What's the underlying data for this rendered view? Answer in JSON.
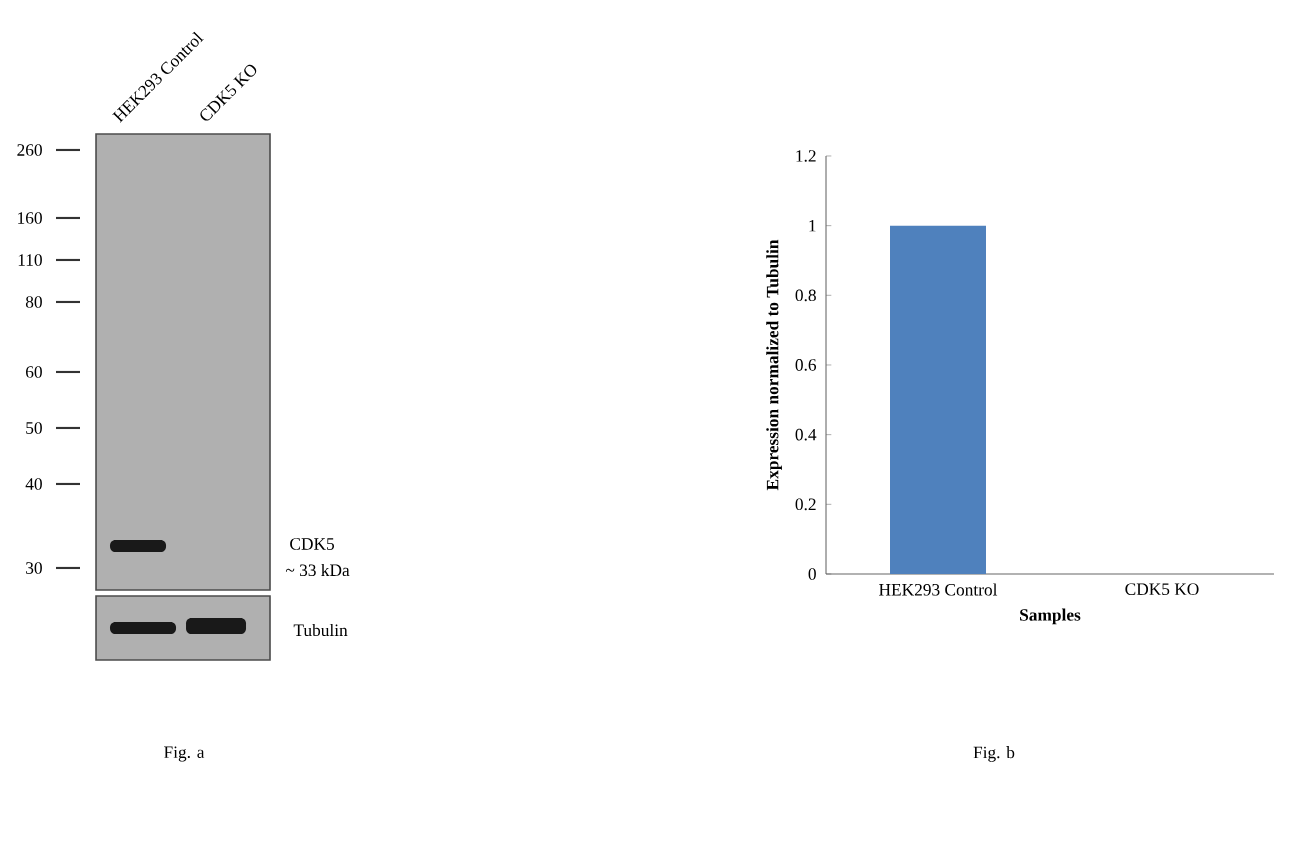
{
  "chart_data": [
    {
      "type": "other",
      "categories": [
        "HEK293 Control",
        "CDK5 KO"
      ],
      "annotations": [
        "260",
        "160",
        "110",
        "80",
        "60",
        "50",
        "40",
        "30",
        "CDK5",
        "~ 33 kDa",
        "Tubulin",
        "Fig. a"
      ]
    },
    {
      "type": "bar",
      "categories": [
        "HEK293 Control",
        "CDK5 KO"
      ],
      "values": [
        1,
        0
      ],
      "color": "#4f81bd",
      "ylim": [
        0,
        1.2
      ],
      "yticks": [
        0,
        0.2,
        0.4,
        0.6,
        0.8,
        1,
        1.2
      ],
      "xlabel": "Samples",
      "ylabel": "Expression  normalized to Tubulin",
      "annotations": [
        "Fig. b"
      ]
    }
  ]
}
